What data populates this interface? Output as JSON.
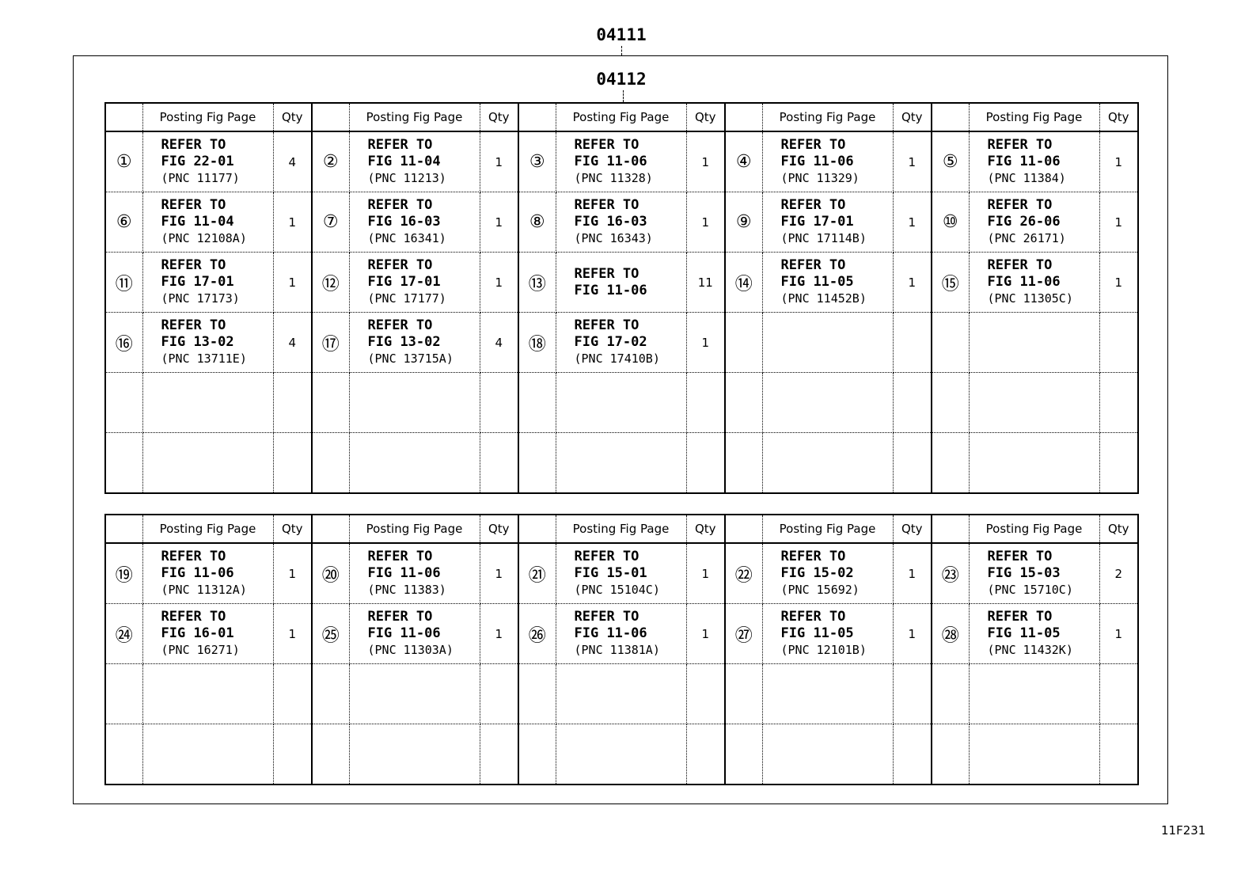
{
  "labels": {
    "top": "04111",
    "inner": "04112",
    "figure_code": "11F231"
  },
  "header": {
    "posting": "Posting Fig Page",
    "qty": "Qty"
  },
  "table1": [
    [
      {
        "num": "①",
        "l1": "REFER TO",
        "l2": "FIG 22-01",
        "l3": "(PNC 11177)",
        "qty": "4"
      },
      {
        "num": "②",
        "l1": "REFER TO",
        "l2": "FIG 11-04",
        "l3": "(PNC 11213)",
        "qty": "1"
      },
      {
        "num": "③",
        "l1": "REFER TO",
        "l2": "FIG 11-06",
        "l3": "(PNC 11328)",
        "qty": "1"
      },
      {
        "num": "④",
        "l1": "REFER TO",
        "l2": "FIG 11-06",
        "l3": "(PNC 11329)",
        "qty": "1"
      },
      {
        "num": "⑤",
        "l1": "REFER TO",
        "l2": "FIG 11-06",
        "l3": "(PNC 11384)",
        "qty": "1"
      }
    ],
    [
      {
        "num": "⑥",
        "l1": "REFER TO",
        "l2": "FIG 11-04",
        "l3": "(PNC 12108A)",
        "qty": "1"
      },
      {
        "num": "⑦",
        "l1": "REFER TO",
        "l2": "FIG 16-03",
        "l3": "(PNC 16341)",
        "qty": "1"
      },
      {
        "num": "⑧",
        "l1": "REFER TO",
        "l2": "FIG 16-03",
        "l3": "(PNC 16343)",
        "qty": "1"
      },
      {
        "num": "⑨",
        "l1": "REFER TO",
        "l2": "FIG 17-01",
        "l3": "(PNC 17114B)",
        "qty": "1"
      },
      {
        "num": "⑩",
        "l1": "REFER TO",
        "l2": "FIG 26-06",
        "l3": "(PNC 26171)",
        "qty": "1"
      }
    ],
    [
      {
        "num": "⑪",
        "l1": "REFER TO",
        "l2": "FIG 17-01",
        "l3": "(PNC 17173)",
        "qty": "1"
      },
      {
        "num": "⑫",
        "l1": "REFER TO",
        "l2": "FIG 17-01",
        "l3": "(PNC 17177)",
        "qty": "1"
      },
      {
        "num": "⑬",
        "l1": "REFER TO",
        "l2": "FIG 11-06",
        "qty": "11"
      },
      {
        "num": "⑭",
        "l1": "REFER TO",
        "l2": "FIG 11-05",
        "l3": "(PNC 11452B)",
        "qty": "1"
      },
      {
        "num": "⑮",
        "l1": "REFER TO",
        "l2": "FIG 11-06",
        "l3": "(PNC 11305C)",
        "qty": "1"
      }
    ],
    [
      {
        "num": "⑯",
        "l1": "REFER TO",
        "l2": "FIG 13-02",
        "l3": "(PNC 13711E)",
        "qty": "4"
      },
      {
        "num": "⑰",
        "l1": "REFER TO",
        "l2": "FIG 13-02",
        "l3": "(PNC 13715A)",
        "qty": "4"
      },
      {
        "num": "⑱",
        "l1": "REFER TO",
        "l2": "FIG 17-02",
        "l3": "(PNC 17410B)",
        "qty": "1"
      },
      null,
      null
    ],
    [
      null,
      null,
      null,
      null,
      null
    ],
    [
      null,
      null,
      null,
      null,
      null
    ]
  ],
  "table2": [
    [
      {
        "num": "⑲",
        "l1": "REFER TO",
        "l2": "FIG 11-06",
        "l3": "(PNC 11312A)",
        "qty": "1"
      },
      {
        "num": "⑳",
        "l1": "REFER TO",
        "l2": "FIG 11-06",
        "l3": "(PNC 11383)",
        "qty": "1"
      },
      {
        "num": "㉑",
        "l1": "REFER TO",
        "l2": "FIG 15-01",
        "l3": "(PNC 15104C)",
        "qty": "1"
      },
      {
        "num": "㉒",
        "l1": "REFER TO",
        "l2": "FIG 15-02",
        "l3": "(PNC 15692)",
        "qty": "1"
      },
      {
        "num": "㉓",
        "l1": "REFER TO",
        "l2": "FIG 15-03",
        "l3": "(PNC 15710C)",
        "qty": "2"
      }
    ],
    [
      {
        "num": "㉔",
        "l1": "REFER TO",
        "l2": "FIG 16-01",
        "l3": "(PNC 16271)",
        "qty": "1"
      },
      {
        "num": "㉕",
        "l1": "REFER TO",
        "l2": "FIG 11-06",
        "l3": "(PNC 11303A)",
        "qty": "1"
      },
      {
        "num": "㉖",
        "l1": "REFER TO",
        "l2": "FIG 11-06",
        "l3": "(PNC 11381A)",
        "qty": "1"
      },
      {
        "num": "㉗",
        "l1": "REFER TO",
        "l2": "FIG 11-05",
        "l3": "(PNC 12101B)",
        "qty": "1"
      },
      {
        "num": "㉘",
        "l1": "REFER TO",
        "l2": "FIG 11-05",
        "l3": "(PNC 11432K)",
        "qty": "1"
      }
    ],
    [
      null,
      null,
      null,
      null,
      null
    ],
    [
      null,
      null,
      null,
      null,
      null
    ]
  ]
}
